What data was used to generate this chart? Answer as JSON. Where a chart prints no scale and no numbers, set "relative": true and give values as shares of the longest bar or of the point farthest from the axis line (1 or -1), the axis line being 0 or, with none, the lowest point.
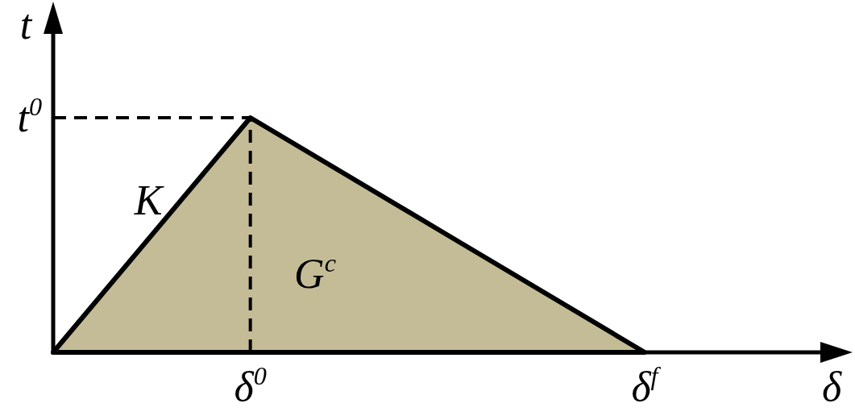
{
  "chart_data": {
    "type": "area",
    "relative": true,
    "xlabel": "δ",
    "ylabel": "t",
    "categories": [
      null,
      "δ$^{0}$",
      null,
      "δ$^{f}$"
    ],
    "series": [
      {
        "color": "#c4bc96",
        "values": [
          0,
          1,
          0.5,
          0
        ]
      }
    ],
    "ref_lines": [
      {
        "axis": "y",
        "value": 1,
        "label": "t$^{0}$",
        "line_style": "dashed",
        "color": "#000000"
      },
      {
        "axis": "x",
        "value": "δ$^{0}$",
        "line_style": "dashed",
        "color": "#000000"
      }
    ],
    "annotations": [
      "K",
      "G$^{c}$"
    ]
  }
}
